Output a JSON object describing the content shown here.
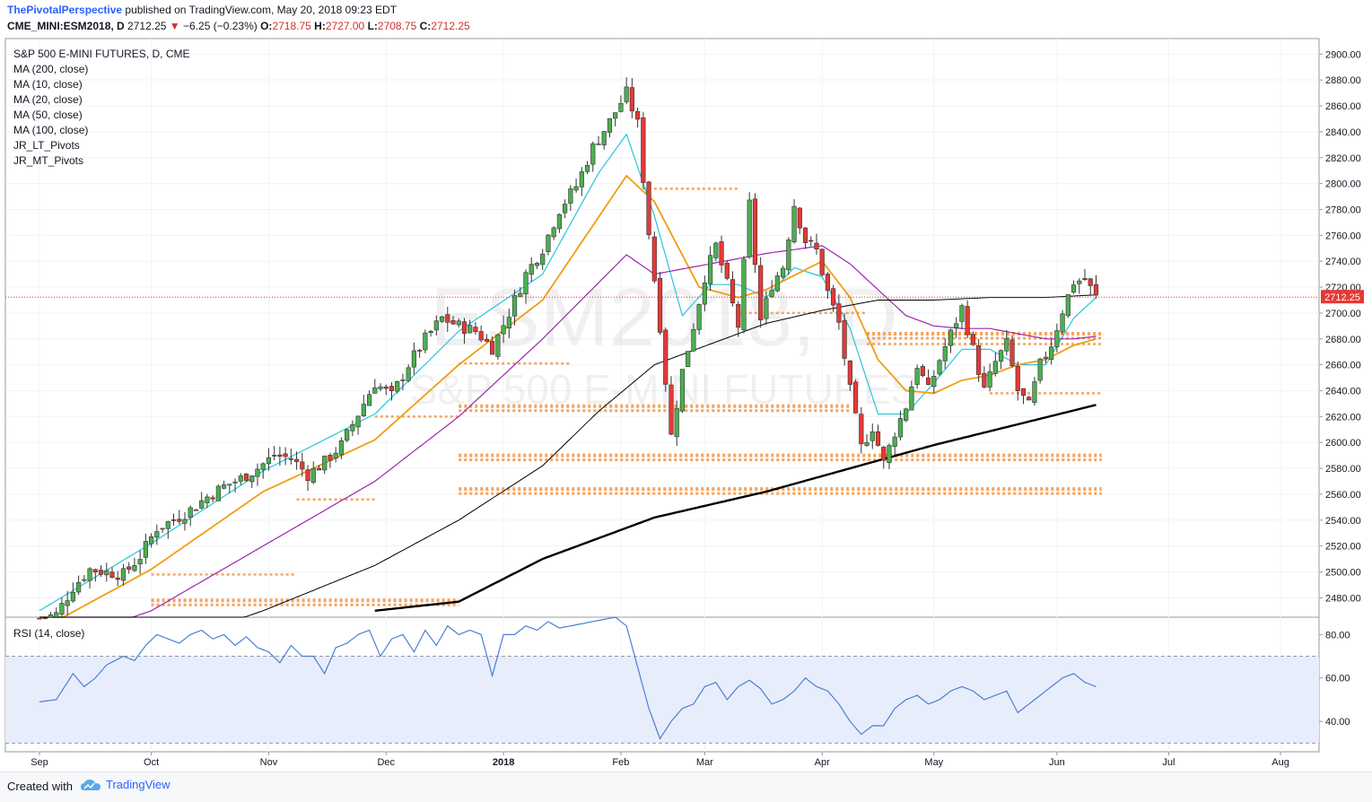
{
  "header": {
    "author": "ThePivotalPerspective",
    "published_text": "published on TradingView.com, May 20, 2018 09:23 EDT",
    "symbol": "CME_MINI:ESM2018, D",
    "last": "2712.25",
    "change": "−6.25 (−0.23%)",
    "o_label": "O:",
    "o": "2718.75",
    "h_label": "H:",
    "h": "2727.00",
    "l_label": "L:",
    "l": "2708.75",
    "c_label": "C:",
    "c": "2712.25"
  },
  "legend": [
    "S&P 500 E-MINI FUTURES, D, CME",
    "MA (200, close)",
    "MA (10, close)",
    "MA (20, close)",
    "MA (50, close)",
    "MA (100, close)",
    "JR_LT_Pivots",
    "JR_MT_Pivots"
  ],
  "watermark": {
    "symbol": "ESM2018, D",
    "name": "S&P 500 E-MINI FUTURES"
  },
  "rsi_label": "RSI (14, close)",
  "footer": {
    "created_with": "Created with",
    "brand": "TradingView"
  },
  "colors": {
    "up": "#4caf50",
    "down": "#e53935",
    "ma200": "#000000",
    "ma10": "#26c6da",
    "ma20": "#f39c12",
    "ma50": "#9c27b0",
    "ma100": "#000000",
    "pivot": "#f5a35c",
    "rsi": "#4a7fd4",
    "price_badge": "#e53935"
  },
  "chart_data": [
    {
      "type": "candlestick",
      "title": "S&P 500 E-MINI FUTURES, D, CME",
      "x_ticks": [
        "Sep",
        "Oct",
        "Nov",
        "Dec",
        "2018",
        "Feb",
        "Mar",
        "Apr",
        "May",
        "Jun",
        "Jul",
        "Aug"
      ],
      "y_ticks": [
        2480,
        2500,
        2520,
        2540,
        2560,
        2580,
        2600,
        2620,
        2640,
        2660,
        2680,
        2700,
        2720,
        2740,
        2760,
        2780,
        2800,
        2820,
        2840,
        2860,
        2880,
        2900
      ],
      "ylim": [
        2465,
        2912
      ],
      "last_price_label": "2712.25",
      "price_anchors": [
        [
          0,
          2464
        ],
        [
          3,
          2467
        ],
        [
          6,
          2488
        ],
        [
          9,
          2502
        ],
        [
          12,
          2500
        ],
        [
          15,
          2498
        ],
        [
          18,
          2512
        ],
        [
          21,
          2534
        ],
        [
          24,
          2540
        ],
        [
          27,
          2548
        ],
        [
          30,
          2558
        ],
        [
          33,
          2566
        ],
        [
          36,
          2572
        ],
        [
          39,
          2580
        ],
        [
          42,
          2590
        ],
        [
          45,
          2588
        ],
        [
          48,
          2575
        ],
        [
          51,
          2585
        ],
        [
          54,
          2598
        ],
        [
          57,
          2622
        ],
        [
          60,
          2646
        ],
        [
          63,
          2636
        ],
        [
          66,
          2660
        ],
        [
          69,
          2680
        ],
        [
          72,
          2696
        ],
        [
          75,
          2690
        ],
        [
          78,
          2686
        ],
        [
          81,
          2673
        ],
        [
          84,
          2700
        ],
        [
          87,
          2730
        ],
        [
          90,
          2750
        ],
        [
          93,
          2780
        ],
        [
          96,
          2798
        ],
        [
          99,
          2828
        ],
        [
          102,
          2848
        ],
        [
          105,
          2870
        ],
        [
          107,
          2846
        ],
        [
          109,
          2762
        ],
        [
          111,
          2690
        ],
        [
          113,
          2605
        ],
        [
          115,
          2655
        ],
        [
          117,
          2690
        ],
        [
          119,
          2728
        ],
        [
          121,
          2752
        ],
        [
          123,
          2722
        ],
        [
          125,
          2690
        ],
        [
          127,
          2784
        ],
        [
          129,
          2694
        ],
        [
          131,
          2722
        ],
        [
          133,
          2736
        ],
        [
          135,
          2784
        ],
        [
          137,
          2756
        ],
        [
          139,
          2748
        ],
        [
          141,
          2716
        ],
        [
          143,
          2692
        ],
        [
          145,
          2640
        ],
        [
          147,
          2596
        ],
        [
          149,
          2612
        ],
        [
          151,
          2584
        ],
        [
          153,
          2608
        ],
        [
          155,
          2628
        ],
        [
          157,
          2660
        ],
        [
          159,
          2640
        ],
        [
          161,
          2664
        ],
        [
          163,
          2684
        ],
        [
          165,
          2704
        ],
        [
          167,
          2672
        ],
        [
          169,
          2640
        ],
        [
          171,
          2662
        ],
        [
          173,
          2676
        ],
        [
          175,
          2640
        ],
        [
          177,
          2628
        ],
        [
          179,
          2660
        ],
        [
          181,
          2676
        ],
        [
          183,
          2702
        ],
        [
          185,
          2724
        ],
        [
          187,
          2726
        ],
        [
          189,
          2712
        ]
      ],
      "moving_averages": [
        {
          "name": "MA (10, close)",
          "anchors": [
            [
              0,
              2470
            ],
            [
              20,
              2522
            ],
            [
              40,
              2578
            ],
            [
              60,
              2622
            ],
            [
              75,
              2686
            ],
            [
              90,
              2730
            ],
            [
              100,
              2808
            ],
            [
              105,
              2838
            ],
            [
              110,
              2775
            ],
            [
              115,
              2698
            ],
            [
              120,
              2722
            ],
            [
              125,
              2722
            ],
            [
              130,
              2712
            ],
            [
              135,
              2735
            ],
            [
              140,
              2728
            ],
            [
              145,
              2688
            ],
            [
              150,
              2622
            ],
            [
              155,
              2622
            ],
            [
              160,
              2646
            ],
            [
              165,
              2672
            ],
            [
              170,
              2672
            ],
            [
              175,
              2660
            ],
            [
              180,
              2660
            ],
            [
              185,
              2696
            ],
            [
              189,
              2712
            ]
          ]
        },
        {
          "name": "MA (20, close)",
          "anchors": [
            [
              0,
              2455
            ],
            [
              20,
              2502
            ],
            [
              40,
              2562
            ],
            [
              60,
              2602
            ],
            [
              75,
              2660
            ],
            [
              90,
              2710
            ],
            [
              105,
              2806
            ],
            [
              110,
              2786
            ],
            [
              118,
              2720
            ],
            [
              125,
              2712
            ],
            [
              130,
              2718
            ],
            [
              140,
              2740
            ],
            [
              145,
              2712
            ],
            [
              150,
              2664
            ],
            [
              155,
              2640
            ],
            [
              160,
              2638
            ],
            [
              165,
              2648
            ],
            [
              170,
              2652
            ],
            [
              175,
              2660
            ],
            [
              180,
              2664
            ],
            [
              185,
              2675
            ],
            [
              189,
              2680
            ]
          ]
        },
        {
          "name": "MA (50, close)",
          "anchors": [
            [
              0,
              2440
            ],
            [
              20,
              2470
            ],
            [
              40,
              2520
            ],
            [
              60,
              2570
            ],
            [
              75,
              2620
            ],
            [
              90,
              2680
            ],
            [
              105,
              2745
            ],
            [
              110,
              2730
            ],
            [
              120,
              2738
            ],
            [
              130,
              2746
            ],
            [
              140,
              2752
            ],
            [
              145,
              2738
            ],
            [
              150,
              2718
            ],
            [
              155,
              2698
            ],
            [
              160,
              2690
            ],
            [
              165,
              2688
            ],
            [
              170,
              2688
            ],
            [
              175,
              2684
            ],
            [
              180,
              2680
            ],
            [
              185,
              2680
            ],
            [
              189,
              2682
            ]
          ]
        },
        {
          "name": "MA (100, close)",
          "anchors": [
            [
              0,
              2420
            ],
            [
              20,
              2440
            ],
            [
              40,
              2470
            ],
            [
              60,
              2505
            ],
            [
              75,
              2540
            ],
            [
              90,
              2582
            ],
            [
              100,
              2624
            ],
            [
              110,
              2660
            ],
            [
              120,
              2676
            ],
            [
              130,
              2692
            ],
            [
              140,
              2702
            ],
            [
              150,
              2710
            ],
            [
              160,
              2710
            ],
            [
              170,
              2712
            ],
            [
              180,
              2712
            ],
            [
              189,
              2714
            ]
          ]
        },
        {
          "name": "MA (200, close)",
          "anchors": [
            [
              60,
              2470
            ],
            [
              75,
              2477
            ],
            [
              90,
              2510
            ],
            [
              110,
              2542
            ],
            [
              130,
              2562
            ],
            [
              145,
              2580
            ],
            [
              160,
              2598
            ],
            [
              175,
              2614
            ],
            [
              189,
              2629
            ]
          ]
        }
      ],
      "pivots": [
        {
          "price": 2498,
          "x_from": 20,
          "x_to": 46,
          "thick": false
        },
        {
          "price": 2478,
          "x_from": 20,
          "x_to": 75,
          "thick": true
        },
        {
          "price": 2556,
          "x_from": 46,
          "x_to": 60,
          "thick": false
        },
        {
          "price": 2620,
          "x_from": 60,
          "x_to": 75,
          "thick": false
        },
        {
          "price": 2661,
          "x_from": 75,
          "x_to": 95,
          "thick": false
        },
        {
          "price": 2628,
          "x_from": 75,
          "x_to": 145,
          "thick": true
        },
        {
          "price": 2590,
          "x_from": 75,
          "x_to": 190,
          "thick": true
        },
        {
          "price": 2564,
          "x_from": 75,
          "x_to": 190,
          "thick": true
        },
        {
          "price": 2796,
          "x_from": 108,
          "x_to": 125,
          "thick": false
        },
        {
          "price": 2700,
          "x_from": 125,
          "x_to": 148,
          "thick": false
        },
        {
          "price": 2684,
          "x_from": 148,
          "x_to": 190,
          "thick": true
        },
        {
          "price": 2676,
          "x_from": 148,
          "x_to": 190,
          "thick": false
        },
        {
          "price": 2638,
          "x_from": 170,
          "x_to": 190,
          "thick": false
        }
      ]
    },
    {
      "type": "line",
      "title": "RSI (14, close)",
      "y_ticks": [
        40,
        60,
        80
      ],
      "ylim": [
        26,
        88
      ],
      "band": [
        30,
        70
      ],
      "anchors": [
        [
          0,
          49
        ],
        [
          3,
          50
        ],
        [
          6,
          62
        ],
        [
          8,
          56
        ],
        [
          10,
          60
        ],
        [
          12,
          66
        ],
        [
          15,
          70
        ],
        [
          17,
          68
        ],
        [
          19,
          75
        ],
        [
          21,
          80
        ],
        [
          23,
          78
        ],
        [
          25,
          76
        ],
        [
          27,
          80
        ],
        [
          29,
          82
        ],
        [
          31,
          78
        ],
        [
          33,
          80
        ],
        [
          35,
          75
        ],
        [
          37,
          79
        ],
        [
          39,
          74
        ],
        [
          41,
          72
        ],
        [
          43,
          67
        ],
        [
          45,
          75
        ],
        [
          47,
          70
        ],
        [
          49,
          70
        ],
        [
          51,
          62
        ],
        [
          53,
          74
        ],
        [
          55,
          76
        ],
        [
          57,
          80
        ],
        [
          59,
          82
        ],
        [
          61,
          70
        ],
        [
          63,
          78
        ],
        [
          65,
          80
        ],
        [
          67,
          72
        ],
        [
          69,
          82
        ],
        [
          71,
          75
        ],
        [
          73,
          84
        ],
        [
          75,
          80
        ],
        [
          77,
          82
        ],
        [
          79,
          80
        ],
        [
          81,
          61
        ],
        [
          83,
          80
        ],
        [
          85,
          80
        ],
        [
          87,
          84
        ],
        [
          89,
          82
        ],
        [
          91,
          86
        ],
        [
          93,
          83
        ],
        [
          95,
          84
        ],
        [
          97,
          85
        ],
        [
          99,
          86
        ],
        [
          101,
          87
        ],
        [
          103,
          88
        ],
        [
          105,
          84
        ],
        [
          107,
          65
        ],
        [
          109,
          46
        ],
        [
          111,
          32
        ],
        [
          113,
          40
        ],
        [
          115,
          46
        ],
        [
          117,
          48
        ],
        [
          119,
          56
        ],
        [
          121,
          58
        ],
        [
          123,
          50
        ],
        [
          125,
          56
        ],
        [
          127,
          59
        ],
        [
          129,
          55
        ],
        [
          131,
          48
        ],
        [
          133,
          50
        ],
        [
          135,
          54
        ],
        [
          137,
          60
        ],
        [
          139,
          56
        ],
        [
          141,
          54
        ],
        [
          143,
          48
        ],
        [
          145,
          40
        ],
        [
          147,
          34
        ],
        [
          149,
          38
        ],
        [
          151,
          38
        ],
        [
          153,
          46
        ],
        [
          155,
          50
        ],
        [
          157,
          52
        ],
        [
          159,
          48
        ],
        [
          161,
          50
        ],
        [
          163,
          54
        ],
        [
          165,
          56
        ],
        [
          167,
          54
        ],
        [
          169,
          50
        ],
        [
          171,
          52
        ],
        [
          173,
          54
        ],
        [
          175,
          44
        ],
        [
          177,
          48
        ],
        [
          179,
          52
        ],
        [
          181,
          56
        ],
        [
          183,
          60
        ],
        [
          185,
          62
        ],
        [
          187,
          58
        ],
        [
          189,
          56
        ]
      ]
    }
  ]
}
